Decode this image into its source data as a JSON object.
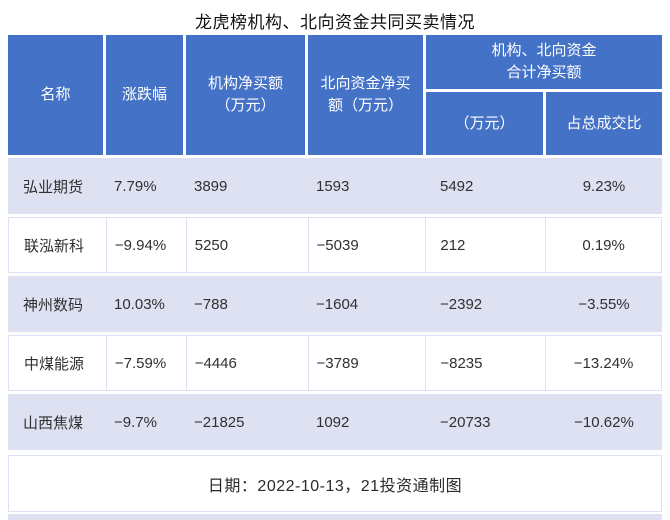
{
  "page": {
    "title": "龙虎榜机构、北向资金共同买卖情况",
    "footer": "日期：2022-10-13，21投资通制图"
  },
  "colors": {
    "header_bg": "#4472C6",
    "header_text": "#FFFFFF",
    "stripe_bg": "#DEE1F2",
    "body_text": "#303030"
  },
  "header": {
    "name": "名称",
    "change": "涨跌幅",
    "inst": "机构净买额\n（万元）",
    "north": "北向资金净买\n额（万元）",
    "group": "机构、北向资金\n合计净买额",
    "group_amount": "（万元）",
    "group_ratio": "占总成交比"
  },
  "rows": [
    {
      "name": "弘业期货",
      "change": "7.79%",
      "inst": "3899",
      "north": "1593",
      "total": "5492",
      "ratio": "9.23%"
    },
    {
      "name": "联泓新科",
      "change": "−9.94%",
      "inst": "5250",
      "north": "−5039",
      "total": "212",
      "ratio": "0.19%"
    },
    {
      "name": "神州数码",
      "change": "10.03%",
      "inst": "−788",
      "north": "−1604",
      "total": "−2392",
      "ratio": "−3.55%"
    },
    {
      "name": "中煤能源",
      "change": "−7.59%",
      "inst": "−4446",
      "north": "−3789",
      "total": "−8235",
      "ratio": "−13.24%"
    },
    {
      "name": "山西焦煤",
      "change": "−9.7%",
      "inst": "−21825",
      "north": "1092",
      "total": "−20733",
      "ratio": "−10.62%"
    }
  ],
  "chart_data": {
    "type": "table",
    "title": "龙虎榜机构、北向资金共同买卖情况",
    "columns": [
      "名称",
      "涨跌幅",
      "机构净买额（万元）",
      "北向资金净买额（万元）",
      "机构、北向资金合计净买额（万元）",
      "机构、北向资金合计净买额占总成交比"
    ],
    "rows": [
      [
        "弘业期货",
        "7.79%",
        3899,
        1593,
        5492,
        "9.23%"
      ],
      [
        "联泓新科",
        "-9.94%",
        5250,
        -5039,
        212,
        "0.19%"
      ],
      [
        "神州数码",
        "10.03%",
        -788,
        -1604,
        -2392,
        "-3.55%"
      ],
      [
        "中煤能源",
        "-7.59%",
        -4446,
        -3789,
        -8235,
        "-13.24%"
      ],
      [
        "山西焦煤",
        "-9.7%",
        -21825,
        1092,
        -20733,
        "-10.62%"
      ]
    ],
    "note": "日期：2022-10-13，21投资通制图"
  }
}
